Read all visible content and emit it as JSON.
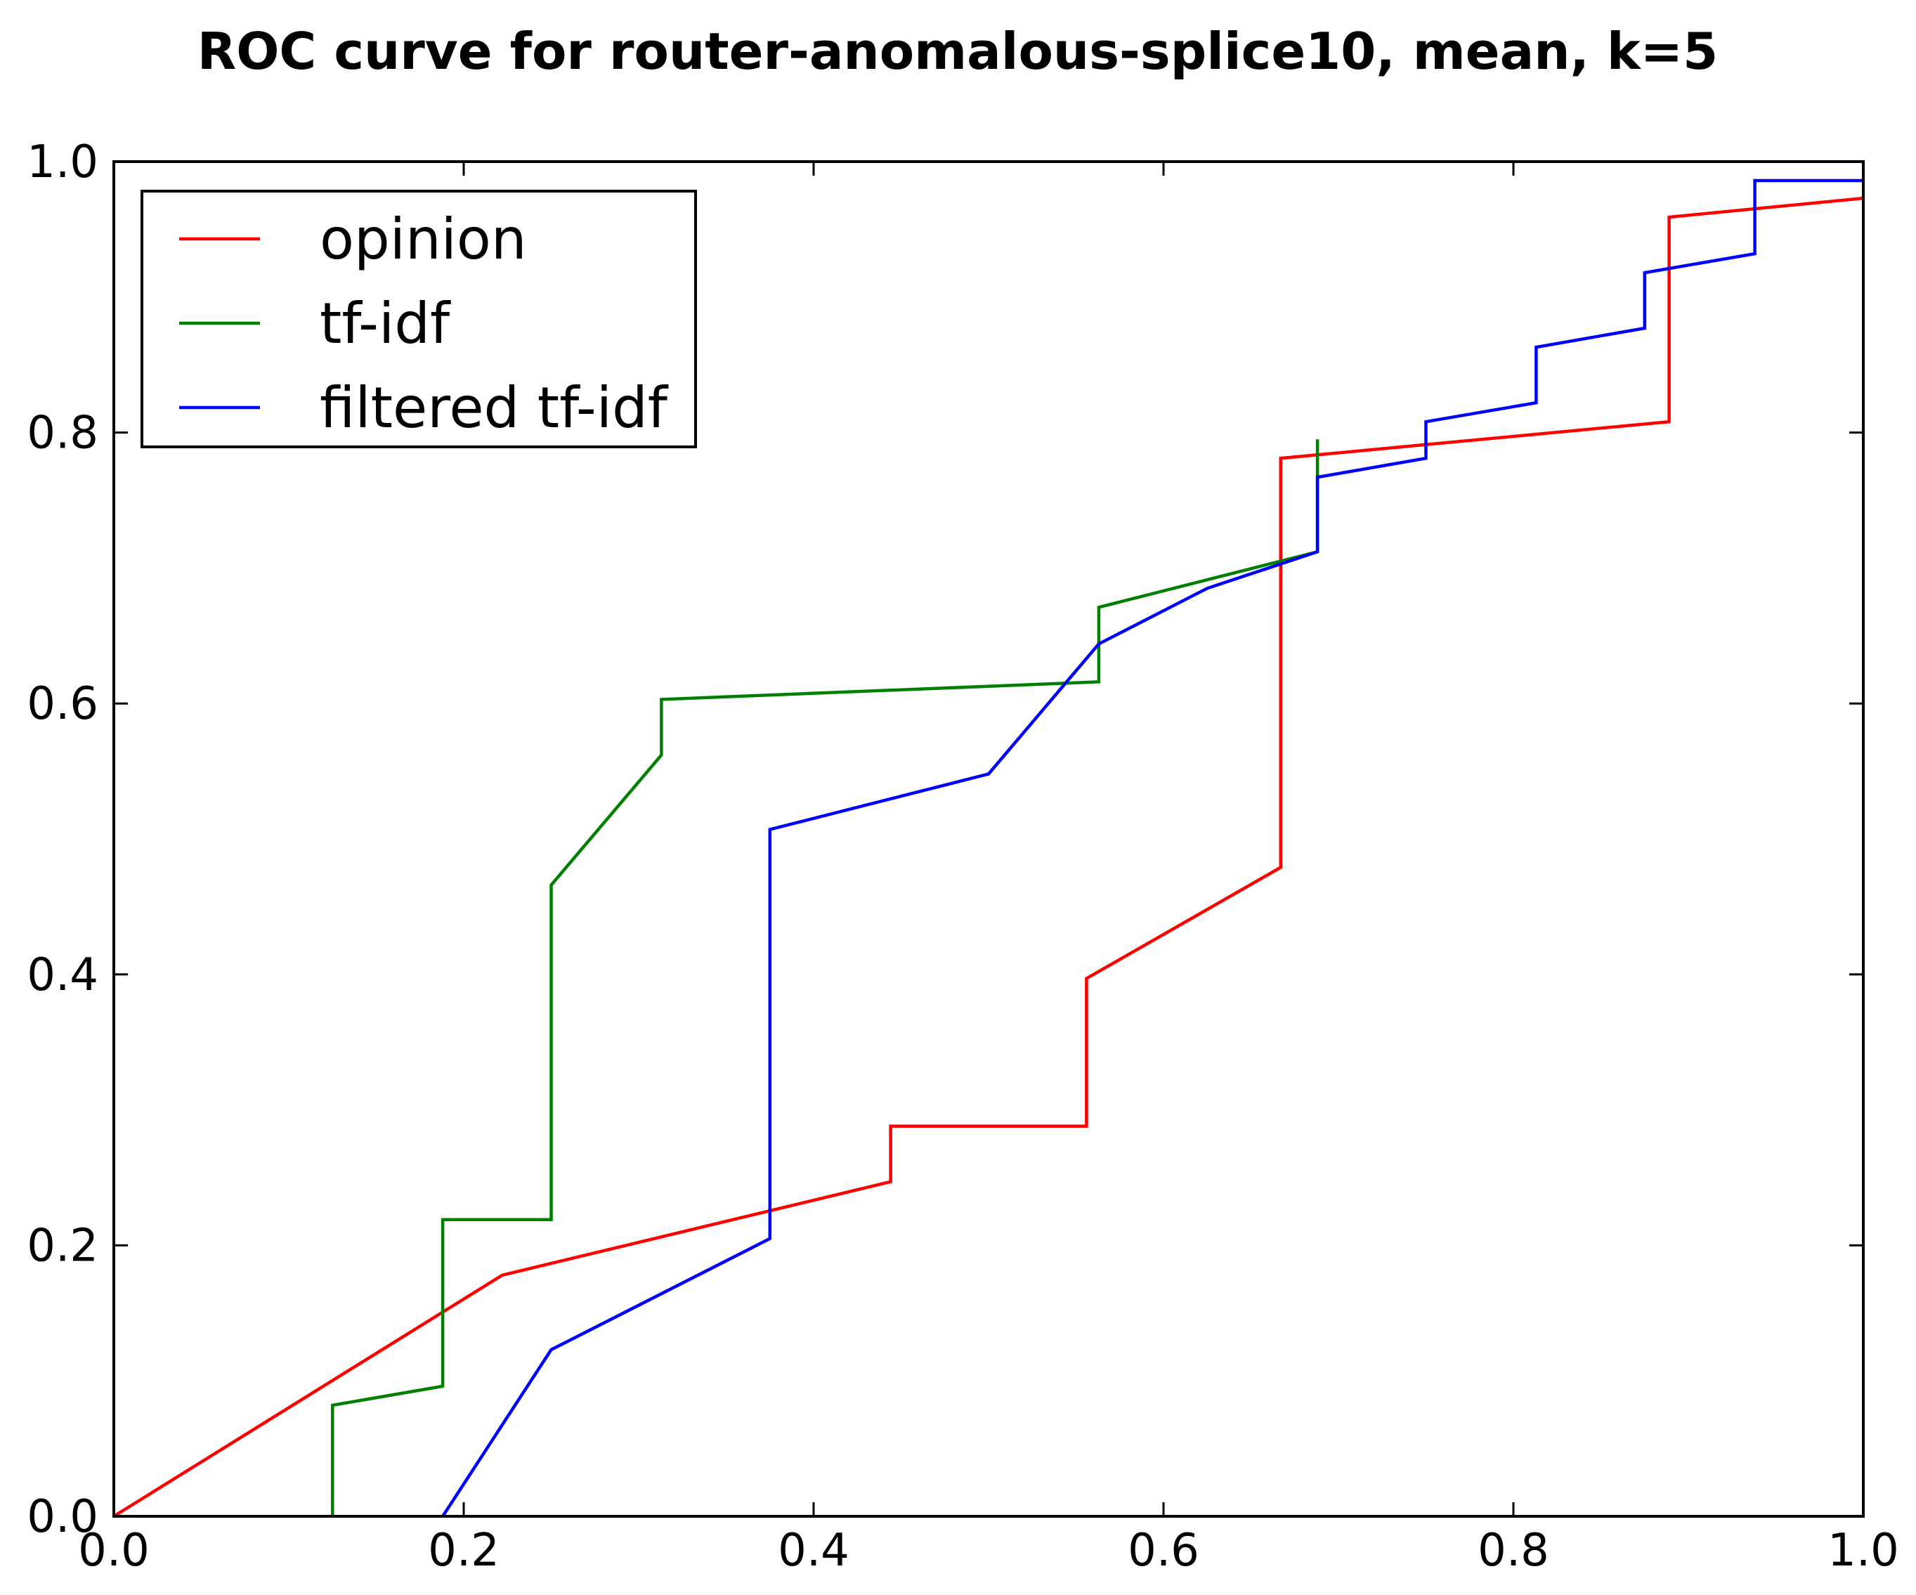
{
  "chart_data": {
    "type": "line",
    "title": "ROC curve for router-anomalous-splice10, mean, k=5",
    "xlabel": "",
    "ylabel": "",
    "xlim": [
      0.0,
      1.0
    ],
    "ylim": [
      0.0,
      1.0
    ],
    "x_ticks": [
      "0.0",
      "0.2",
      "0.4",
      "0.6",
      "0.8",
      "1.0"
    ],
    "y_ticks": [
      "0.0",
      "0.2",
      "0.4",
      "0.6",
      "0.8",
      "1.0"
    ],
    "grid": false,
    "legend_position": "top-left",
    "series": [
      {
        "name": "opinion",
        "color": "#ff0000",
        "points": [
          [
            0.0,
            0.0
          ],
          [
            0.222,
            0.178
          ],
          [
            0.444,
            0.247
          ],
          [
            0.444,
            0.288
          ],
          [
            0.556,
            0.288
          ],
          [
            0.556,
            0.397
          ],
          [
            0.667,
            0.479
          ],
          [
            0.667,
            0.781
          ],
          [
            0.889,
            0.808
          ],
          [
            0.889,
            0.959
          ],
          [
            1.0,
            0.973
          ]
        ]
      },
      {
        "name": "tf-idf",
        "color": "#008000",
        "points": [
          [
            0.125,
            0.0
          ],
          [
            0.125,
            0.082
          ],
          [
            0.188,
            0.096
          ],
          [
            0.188,
            0.219
          ],
          [
            0.25,
            0.219
          ],
          [
            0.25,
            0.466
          ],
          [
            0.313,
            0.562
          ],
          [
            0.313,
            0.603
          ],
          [
            0.563,
            0.616
          ],
          [
            0.563,
            0.671
          ],
          [
            0.688,
            0.712
          ],
          [
            0.688,
            0.795
          ]
        ]
      },
      {
        "name": "filtered tf-idf",
        "color": "#0000ff",
        "points": [
          [
            0.188,
            0.0
          ],
          [
            0.25,
            0.123
          ],
          [
            0.375,
            0.205
          ],
          [
            0.375,
            0.507
          ],
          [
            0.5,
            0.548
          ],
          [
            0.563,
            0.644
          ],
          [
            0.625,
            0.685
          ],
          [
            0.688,
            0.712
          ],
          [
            0.688,
            0.767
          ],
          [
            0.75,
            0.781
          ],
          [
            0.75,
            0.808
          ],
          [
            0.813,
            0.822
          ],
          [
            0.813,
            0.863
          ],
          [
            0.875,
            0.877
          ],
          [
            0.875,
            0.918
          ],
          [
            0.938,
            0.932
          ],
          [
            0.938,
            0.986
          ],
          [
            1.0,
            0.986
          ]
        ]
      }
    ]
  }
}
